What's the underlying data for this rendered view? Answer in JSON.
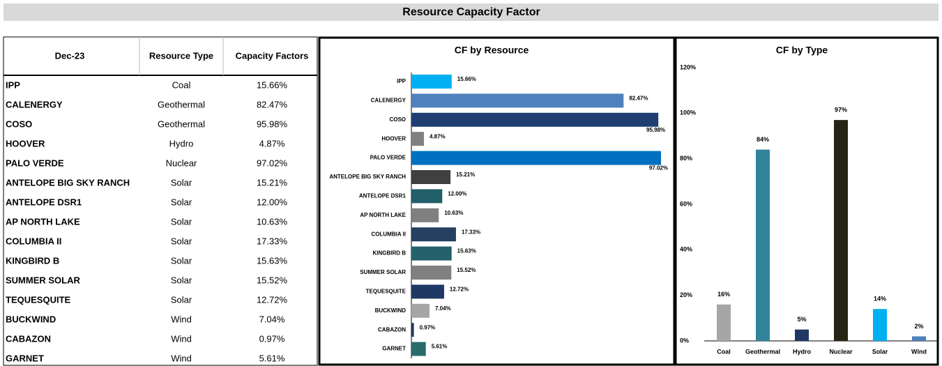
{
  "header": {
    "title": "Resource Capacity Factor"
  },
  "table": {
    "header": [
      "Dec-23",
      "Resource Type",
      "Capacity Factors"
    ],
    "rows": [
      [
        "IPP",
        "Coal",
        "15.66%"
      ],
      [
        "CALENERGY",
        "Geothermal",
        "82.47%"
      ],
      [
        "COSO",
        "Geothermal",
        "95.98%"
      ],
      [
        "HOOVER",
        "Hydro",
        "4.87%"
      ],
      [
        "PALO VERDE",
        "Nuclear",
        "97.02%"
      ],
      [
        "ANTELOPE BIG SKY RANCH",
        "Solar",
        "15.21%"
      ],
      [
        "ANTELOPE DSR1",
        "Solar",
        "12.00%"
      ],
      [
        "AP NORTH LAKE",
        "Solar",
        "10.63%"
      ],
      [
        "COLUMBIA II",
        "Solar",
        "17.33%"
      ],
      [
        "KINGBIRD B",
        "Solar",
        "15.63%"
      ],
      [
        "SUMMER SOLAR",
        "Solar",
        "15.52%"
      ],
      [
        "TEQUESQUITE",
        "Solar",
        "12.72%"
      ],
      [
        "BUCKWIND",
        "Wind",
        "7.04%"
      ],
      [
        "CABAZON",
        "Wind",
        "0.97%"
      ],
      [
        "GARNET",
        "Wind",
        "5.61%"
      ]
    ]
  },
  "chart_data": [
    {
      "type": "hbar",
      "title": "CF by Resource",
      "categories": [
        "IPP",
        "CALENERGY",
        "COSO",
        "HOOVER",
        "PALO VERDE",
        "ANTELOPE BIG SKY RANCH",
        "ANTELOPE DSR1",
        "AP NORTH LAKE",
        "COLUMBIA II",
        "KINGBIRD B",
        "SUMMER SOLAR",
        "TEQUESQUITE",
        "BUCKWIND",
        "CABAZON",
        "GARNET"
      ],
      "values": [
        15.66,
        82.47,
        95.98,
        4.87,
        97.02,
        15.21,
        12.0,
        10.63,
        17.33,
        15.63,
        15.52,
        12.72,
        7.04,
        0.97,
        5.61
      ],
      "value_labels": [
        "15.66%",
        "82.47%",
        "95.98%",
        "4.87%",
        "97.02%",
        "15.21%",
        "12.00%",
        "10.63%",
        "17.33%",
        "15.63%",
        "15.52%",
        "12.72%",
        "7.04%",
        "0.97%",
        "5.61%"
      ],
      "colors": [
        "#00b0f0",
        "#4f81bd",
        "#1f3f73",
        "#808080",
        "#0070c0",
        "#404040",
        "#215f6b",
        "#808080",
        "#254061",
        "#23616b",
        "#808080",
        "#1f3864",
        "#a6a6a6",
        "#1f3864",
        "#2a6b6b"
      ],
      "xlim": [
        0,
        100
      ]
    },
    {
      "type": "bar",
      "title": "CF by Type",
      "categories": [
        "Coal",
        "Geothermal",
        "Hydro",
        "Nuclear",
        "Solar",
        "Wind"
      ],
      "values": [
        16,
        84,
        5,
        97,
        14,
        2
      ],
      "value_labels": [
        "16%",
        "84%",
        "5%",
        "97%",
        "14%",
        "2%"
      ],
      "colors": [
        "#a6a6a6",
        "#31849b",
        "#1f3864",
        "#262414",
        "#00b0f0",
        "#4f81bd"
      ],
      "ylim": [
        0,
        120
      ],
      "yticks": [
        {
          "value": 0,
          "label": "0%"
        },
        {
          "value": 20,
          "label": "20%"
        },
        {
          "value": 40,
          "label": "40%"
        },
        {
          "value": 60,
          "label": "60%"
        },
        {
          "value": 80,
          "label": "80%"
        },
        {
          "value": 100,
          "label": "100%"
        },
        {
          "value": 120,
          "label": "120%"
        }
      ]
    }
  ]
}
